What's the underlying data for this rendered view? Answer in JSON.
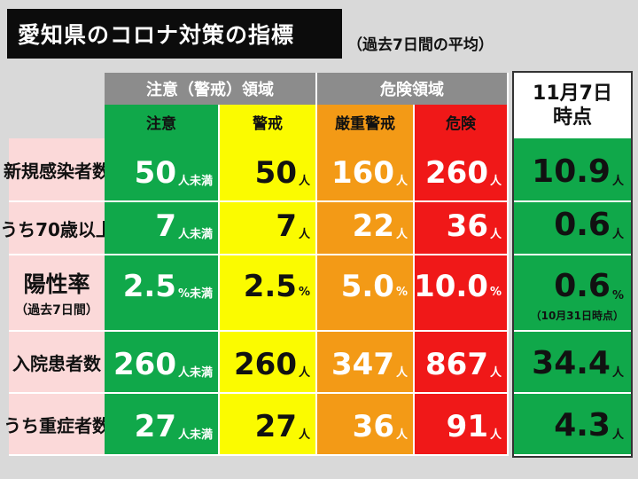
{
  "title": "愛知県のコロナ対策の指標",
  "subtitle": "（過去7日間の平均）",
  "groups": {
    "caution": "注意（警戒）領域",
    "danger": "危険領域"
  },
  "columns": [
    "注意",
    "警戒",
    "厳重警戒",
    "危険"
  ],
  "current_header": {
    "line1": "11月7日",
    "line2": "時点"
  },
  "rows": [
    {
      "label": "新規感染者数",
      "sub": "",
      "values": [
        {
          "num": "50",
          "unit": "人未満"
        },
        {
          "num": "50",
          "unit": "人"
        },
        {
          "num": "160",
          "unit": "人"
        },
        {
          "num": "260",
          "unit": "人"
        }
      ],
      "current": {
        "num": "10.9",
        "unit": "人",
        "note": ""
      }
    },
    {
      "label": "うち70歳以上",
      "sub": "",
      "values": [
        {
          "num": "7",
          "unit": "人未満"
        },
        {
          "num": "7",
          "unit": "人"
        },
        {
          "num": "22",
          "unit": "人"
        },
        {
          "num": "36",
          "unit": "人"
        }
      ],
      "current": {
        "num": "0.6",
        "unit": "人",
        "note": ""
      }
    },
    {
      "label": "陽性率",
      "sub": "（過去7日間）",
      "values": [
        {
          "num": "2.5",
          "unit": "%未満"
        },
        {
          "num": "2.5",
          "unit": "%"
        },
        {
          "num": "5.0",
          "unit": "%"
        },
        {
          "num": "10.0",
          "unit": "%"
        }
      ],
      "current": {
        "num": "0.6",
        "unit": "%",
        "note": "（10月31日時点）"
      }
    },
    {
      "label": "入院患者数",
      "sub": "",
      "values": [
        {
          "num": "260",
          "unit": "人未満"
        },
        {
          "num": "260",
          "unit": "人"
        },
        {
          "num": "347",
          "unit": "人"
        },
        {
          "num": "867",
          "unit": "人"
        }
      ],
      "current": {
        "num": "34.4",
        "unit": "人",
        "note": ""
      }
    },
    {
      "label": "うち重症者数",
      "sub": "",
      "values": [
        {
          "num": "27",
          "unit": "人未満"
        },
        {
          "num": "27",
          "unit": "人"
        },
        {
          "num": "36",
          "unit": "人"
        },
        {
          "num": "91",
          "unit": "人"
        }
      ],
      "current": {
        "num": "4.3",
        "unit": "人",
        "note": ""
      }
    }
  ],
  "colors": {
    "green": "#10a84a",
    "yellow": "#fbfb00",
    "orange": "#f39a16",
    "red": "#f01818",
    "label_bg": "#fbd9d9",
    "header_gray": "#8c8c8c"
  }
}
